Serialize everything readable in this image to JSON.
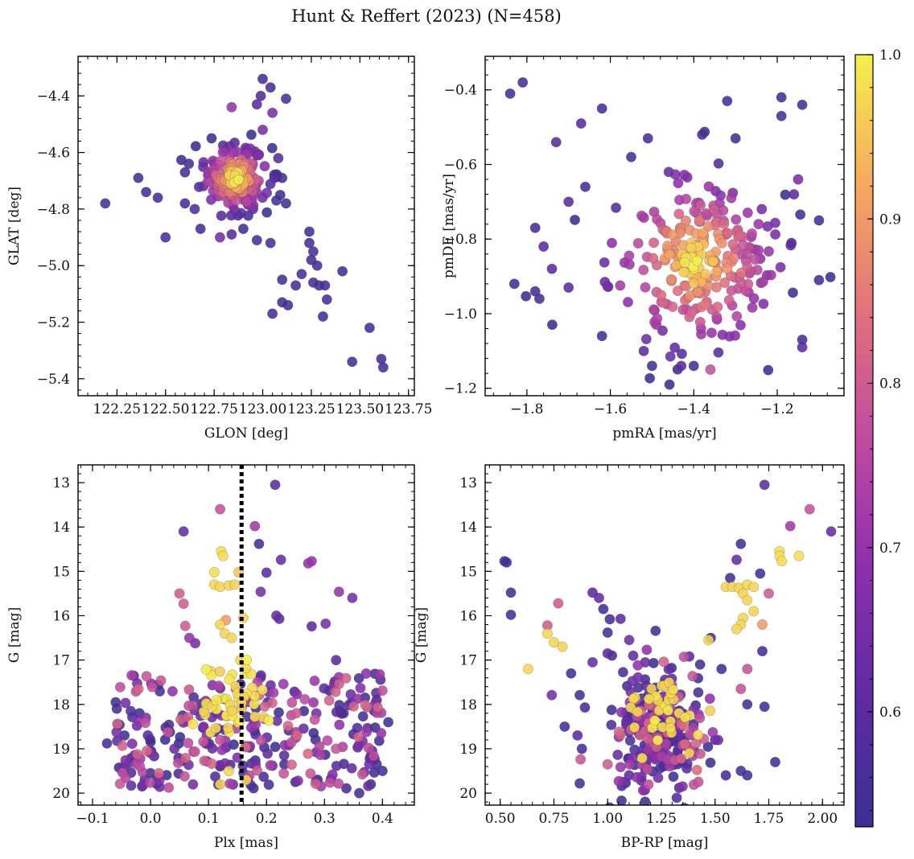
{
  "title": "Hunt & Reffert (2023) (N=458)",
  "colorbar": {
    "min": 0.53,
    "max": 1.0,
    "ticks": [
      0.6,
      0.7,
      0.8,
      0.9,
      1.0
    ],
    "tick_labels": [
      "0.6",
      "0.7",
      "0.8",
      "0.9",
      "1.0"
    ],
    "colormap": "plasma"
  },
  "chart_data": [
    {
      "id": "glon-glat",
      "type": "scatter",
      "xlabel": "GLON [deg]",
      "ylabel": "GLAT [deg]",
      "xlim": [
        122.05,
        123.78
      ],
      "ylim": [
        -5.46,
        -4.26
      ],
      "xticks": [
        122.25,
        122.5,
        122.75,
        123.0,
        123.25,
        123.5,
        123.75
      ],
      "xtick_labels": [
        "122.25",
        "122.50",
        "122.75",
        "123.00",
        "123.25",
        "123.50",
        "123.75"
      ],
      "yticks": [
        -4.4,
        -4.6,
        -4.8,
        -5.0,
        -5.2,
        -5.4
      ],
      "ytick_labels": [
        "−4.4",
        "−4.6",
        "−4.8",
        "−5.0",
        "−5.2",
        "−5.4"
      ],
      "invert_y": false,
      "cluster": {
        "cx": 122.86,
        "cy": -4.69,
        "sx": 0.08,
        "sy": 0.055,
        "n": 200
      },
      "points": [
        [
          122.19,
          -4.78,
          0.55
        ],
        [
          122.36,
          -4.69,
          0.55
        ],
        [
          122.4,
          -4.74,
          0.55
        ],
        [
          122.46,
          -4.76,
          0.55
        ],
        [
          122.5,
          -4.9,
          0.56
        ],
        [
          123.0,
          -4.34,
          0.55
        ],
        [
          123.12,
          -4.41,
          0.56
        ],
        [
          123.04,
          -4.92,
          0.56
        ],
        [
          122.97,
          -4.91,
          0.56
        ],
        [
          123.05,
          -5.17,
          0.55
        ],
        [
          123.1,
          -5.05,
          0.55
        ],
        [
          123.1,
          -5.13,
          0.55
        ],
        [
          123.13,
          -5.14,
          0.55
        ],
        [
          123.17,
          -5.07,
          0.55
        ],
        [
          123.2,
          -5.03,
          0.55
        ],
        [
          123.24,
          -4.88,
          0.55
        ],
        [
          123.24,
          -4.92,
          0.55
        ],
        [
          123.25,
          -4.98,
          0.55
        ],
        [
          123.26,
          -4.95,
          0.56
        ],
        [
          123.28,
          -5.0,
          0.55
        ],
        [
          123.26,
          -5.06,
          0.55
        ],
        [
          123.29,
          -5.07,
          0.55
        ],
        [
          123.32,
          -5.07,
          0.55
        ],
        [
          123.33,
          -5.12,
          0.55
        ],
        [
          123.31,
          -5.18,
          0.55
        ],
        [
          123.41,
          -5.02,
          0.55
        ],
        [
          123.46,
          -5.34,
          0.55
        ],
        [
          123.55,
          -5.22,
          0.55
        ],
        [
          123.61,
          -5.33,
          0.55
        ],
        [
          123.62,
          -5.36,
          0.55
        ],
        [
          122.68,
          -4.87,
          0.55
        ],
        [
          122.78,
          -4.9,
          0.65
        ],
        [
          122.84,
          -4.89,
          0.6
        ],
        [
          122.9,
          -4.87,
          0.55
        ],
        [
          122.62,
          -4.64,
          0.55
        ],
        [
          122.6,
          -4.67,
          0.55
        ],
        [
          123.08,
          -4.62,
          0.6
        ],
        [
          123.04,
          -4.37,
          0.56
        ],
        [
          122.99,
          -4.4,
          0.58
        ],
        [
          122.97,
          -4.43,
          0.6
        ],
        [
          122.84,
          -4.44,
          0.7
        ],
        [
          123.05,
          -4.46,
          0.65
        ],
        [
          123.06,
          -4.69,
          0.6
        ],
        [
          123.1,
          -4.69,
          0.55
        ],
        [
          123.07,
          -4.77,
          0.55
        ],
        [
          123.12,
          -4.78,
          0.55
        ],
        [
          122.95,
          -4.8,
          0.6
        ],
        [
          122.6,
          -4.78,
          0.55
        ],
        [
          122.65,
          -4.8,
          0.58
        ],
        [
          123.0,
          -4.52,
          0.65
        ]
      ]
    },
    {
      "id": "pmra-pmde",
      "type": "scatter",
      "xlabel": "pmRA [mas/yr]",
      "ylabel": "pmDE [mas/yr]",
      "xlim": [
        -1.9,
        -1.04
      ],
      "ylim": [
        -1.22,
        -0.31
      ],
      "xticks": [
        -1.8,
        -1.6,
        -1.4,
        -1.2
      ],
      "xtick_labels": [
        "−1.8",
        "−1.6",
        "−1.4",
        "−1.2"
      ],
      "yticks": [
        -0.4,
        -0.6,
        -0.8,
        -1.0,
        -1.2
      ],
      "ytick_labels": [
        "−0.4",
        "−0.6",
        "−0.8",
        "−1.0",
        "−1.2"
      ],
      "invert_y": false,
      "cluster": {
        "cx": -1.4,
        "cy": -0.86,
        "sx": 0.1,
        "sy": 0.11,
        "n": 260
      },
      "points": [
        [
          -1.84,
          -0.41,
          0.55
        ],
        [
          -1.81,
          -0.38,
          0.55
        ],
        [
          -1.67,
          -0.49,
          0.6
        ],
        [
          -1.62,
          -0.45,
          0.55
        ],
        [
          -1.73,
          -0.54,
          0.6
        ],
        [
          -1.32,
          -0.43,
          0.55
        ],
        [
          -1.19,
          -0.42,
          0.55
        ],
        [
          -1.14,
          -0.44,
          0.55
        ],
        [
          -1.19,
          -0.47,
          0.55
        ],
        [
          -1.3,
          -0.53,
          0.55
        ],
        [
          -1.51,
          -0.53,
          0.56
        ],
        [
          -1.55,
          -0.58,
          0.55
        ],
        [
          -1.38,
          -0.52,
          0.55
        ],
        [
          -1.83,
          -0.92,
          0.55
        ],
        [
          -1.78,
          -0.94,
          0.55
        ],
        [
          -1.77,
          -0.96,
          0.55
        ],
        [
          -1.1,
          -0.75,
          0.55
        ],
        [
          -1.1,
          -0.91,
          0.55
        ],
        [
          -1.14,
          -1.07,
          0.55
        ],
        [
          -1.14,
          -1.09,
          0.6
        ],
        [
          -1.5,
          -1.14,
          0.55
        ],
        [
          -1.4,
          -1.14,
          0.55
        ],
        [
          -1.36,
          -1.15,
          0.78
        ],
        [
          -1.43,
          -1.14,
          0.6
        ],
        [
          -1.52,
          -1.1,
          0.6
        ],
        [
          -1.62,
          -1.06,
          0.55
        ],
        [
          -1.7,
          -0.93,
          0.6
        ],
        [
          -1.74,
          -0.88,
          0.6
        ],
        [
          -1.66,
          -0.66,
          0.55
        ],
        [
          -1.7,
          -0.7,
          0.6
        ],
        [
          -1.16,
          -0.68,
          0.6
        ],
        [
          -1.15,
          -0.64,
          0.66
        ],
        [
          -1.78,
          -0.77,
          0.55
        ],
        [
          -1.76,
          -0.82,
          0.6
        ],
        [
          -1.31,
          -0.69,
          0.72
        ],
        [
          -1.46,
          -0.62,
          0.62
        ]
      ]
    },
    {
      "id": "plx-g",
      "type": "scatter",
      "xlabel": "Plx [mas]",
      "ylabel": "G [mag]",
      "xlim": [
        -0.125,
        0.455
      ],
      "ylim": [
        12.6,
        20.27
      ],
      "xticks": [
        -0.1,
        0.0,
        0.1,
        0.2,
        0.3,
        0.4
      ],
      "xtick_labels": [
        "−0.1",
        "0.0",
        "0.1",
        "0.2",
        "0.3",
        "0.4"
      ],
      "yticks": [
        13,
        14,
        15,
        16,
        17,
        18,
        19,
        20
      ],
      "ytick_labels": [
        "13",
        "14",
        "15",
        "16",
        "17",
        "18",
        "19",
        "20"
      ],
      "invert_y": true,
      "vline": 0.157,
      "points": [
        [
          0.215,
          13.05,
          0.6
        ],
        [
          0.12,
          13.6,
          0.78
        ],
        [
          0.057,
          14.1,
          0.62
        ],
        [
          0.18,
          13.98,
          0.72
        ],
        [
          0.187,
          14.38,
          0.55
        ],
        [
          0.122,
          14.55,
          0.98
        ],
        [
          0.125,
          14.65,
          0.98
        ],
        [
          0.225,
          14.74,
          0.62
        ],
        [
          0.278,
          14.77,
          0.7
        ],
        [
          0.272,
          14.82,
          0.7
        ],
        [
          0.11,
          15.02,
          0.98
        ],
        [
          0.152,
          15.02,
          0.95
        ],
        [
          0.2,
          15.03,
          0.6
        ],
        [
          0.19,
          15.46,
          0.65
        ],
        [
          0.325,
          15.46,
          0.7
        ],
        [
          0.348,
          15.6,
          0.65
        ],
        [
          0.05,
          15.5,
          0.8
        ],
        [
          0.057,
          15.73,
          0.8
        ],
        [
          0.06,
          16.23,
          0.8
        ],
        [
          0.067,
          16.5,
          0.7
        ],
        [
          0.077,
          16.62,
          0.65
        ],
        [
          0.222,
          16.07,
          0.6
        ],
        [
          0.217,
          16.0,
          0.62
        ],
        [
          0.302,
          16.18,
          0.65
        ],
        [
          0.278,
          16.24,
          0.6
        ],
        [
          0.11,
          15.3,
          0.97
        ],
        [
          0.12,
          15.35,
          0.97
        ],
        [
          0.135,
          15.32,
          0.97
        ],
        [
          0.145,
          15.3,
          0.97
        ],
        [
          0.12,
          16.2,
          0.97
        ],
        [
          0.128,
          16.4,
          0.97
        ],
        [
          0.14,
          16.5,
          0.97
        ],
        [
          0.13,
          16.1,
          0.9
        ],
        [
          0.16,
          16.05,
          0.97
        ],
        [
          0.155,
          17.0,
          0.97
        ],
        [
          -0.075,
          18.88,
          0.55
        ],
        [
          -0.06,
          17.95,
          0.55
        ],
        [
          -0.045,
          18.7,
          0.55
        ],
        [
          0.0,
          19.55,
          0.55
        ],
        [
          0.36,
          20.0,
          0.55
        ],
        [
          0.38,
          19.8,
          0.55
        ],
        [
          0.4,
          19.5,
          0.55
        ],
        [
          0.39,
          19.35,
          0.55
        ],
        [
          0.41,
          18.4,
          0.55
        ],
        [
          0.39,
          17.9,
          0.6
        ],
        [
          0.37,
          17.85,
          0.55
        ],
        [
          0.12,
          19.8,
          0.97
        ],
        [
          0.135,
          19.5,
          0.97
        ],
        [
          0.165,
          19.7,
          0.97
        ],
        [
          0.32,
          17.0,
          0.6
        ],
        [
          0.12,
          18.8,
          0.78
        ]
      ],
      "cloud": {
        "xmin": -0.06,
        "xmax": 0.4,
        "ymin": 17.3,
        "ymax": 19.9,
        "n": 290
      },
      "yellow_cluster": {
        "cx": 0.14,
        "cy": 17.9,
        "sx": 0.03,
        "sy": 0.45,
        "n": 45
      }
    },
    {
      "id": "bprp-g",
      "type": "scatter",
      "xlabel": "BP-RP [mag]",
      "ylabel": "G [mag]",
      "xlim": [
        0.43,
        2.1
      ],
      "ylim": [
        12.6,
        20.27
      ],
      "xticks": [
        0.5,
        0.75,
        1.0,
        1.25,
        1.5,
        1.75,
        2.0
      ],
      "xtick_labels": [
        "0.50",
        "0.75",
        "1.00",
        "1.25",
        "1.50",
        "1.75",
        "2.00"
      ],
      "yticks": [
        13,
        14,
        15,
        16,
        17,
        18,
        19,
        20
      ],
      "ytick_labels": [
        "13",
        "14",
        "15",
        "16",
        "17",
        "18",
        "19",
        "20"
      ],
      "invert_y": true,
      "points": [
        [
          1.73,
          13.05,
          0.6
        ],
        [
          1.94,
          13.6,
          0.78
        ],
        [
          2.04,
          14.1,
          0.62
        ],
        [
          1.85,
          13.98,
          0.72
        ],
        [
          1.62,
          14.38,
          0.55
        ],
        [
          1.8,
          14.55,
          0.98
        ],
        [
          1.8,
          14.65,
          0.98
        ],
        [
          1.89,
          14.65,
          0.98
        ],
        [
          1.81,
          14.77,
          0.98
        ],
        [
          1.6,
          14.74,
          0.62
        ],
        [
          1.71,
          15.05,
          0.55
        ],
        [
          1.57,
          15.15,
          0.55
        ],
        [
          0.52,
          14.77,
          0.55
        ],
        [
          0.53,
          14.8,
          0.55
        ],
        [
          0.55,
          15.48,
          0.55
        ],
        [
          0.55,
          15.98,
          0.55
        ],
        [
          0.63,
          17.2,
          0.97
        ],
        [
          0.72,
          16.22,
          0.8
        ],
        [
          0.72,
          16.4,
          0.97
        ],
        [
          0.75,
          16.6,
          0.97
        ],
        [
          0.79,
          16.7,
          0.97
        ],
        [
          0.77,
          15.72,
          0.8
        ],
        [
          0.74,
          17.79,
          0.65
        ],
        [
          0.8,
          18.5,
          0.55
        ],
        [
          0.86,
          18.7,
          0.6
        ],
        [
          0.88,
          19.0,
          0.55
        ],
        [
          0.87,
          19.78,
          0.55
        ],
        [
          1.0,
          19.35,
          0.8
        ],
        [
          1.1,
          19.6,
          0.6
        ],
        [
          1.48,
          16.5,
          0.55
        ],
        [
          1.47,
          16.55,
          0.97
        ],
        [
          1.55,
          15.35,
          0.97
        ],
        [
          1.58,
          15.35,
          0.97
        ],
        [
          1.61,
          15.37,
          0.97
        ],
        [
          1.65,
          15.3,
          0.97
        ],
        [
          1.68,
          15.35,
          0.97
        ],
        [
          1.63,
          15.5,
          0.97
        ],
        [
          1.65,
          15.65,
          0.97
        ],
        [
          1.68,
          15.9,
          0.97
        ],
        [
          1.63,
          16.05,
          0.97
        ],
        [
          1.62,
          16.2,
          0.97
        ],
        [
          1.6,
          16.3,
          0.97
        ],
        [
          1.72,
          16.2,
          0.9
        ],
        [
          1.75,
          15.5,
          0.8
        ],
        [
          1.72,
          16.8,
          0.55
        ],
        [
          1.65,
          17.2,
          0.78
        ],
        [
          1.62,
          17.65,
          0.78
        ],
        [
          1.65,
          18.0,
          0.55
        ],
        [
          1.73,
          18.05,
          0.55
        ],
        [
          1.78,
          19.3,
          0.55
        ],
        [
          1.62,
          19.5,
          0.55
        ],
        [
          1.65,
          19.6,
          0.55
        ],
        [
          1.55,
          19.6,
          0.55
        ],
        [
          1.5,
          18.8,
          0.6
        ],
        [
          0.93,
          15.48,
          0.6
        ],
        [
          0.96,
          15.6,
          0.62
        ],
        [
          0.98,
          15.85,
          0.55
        ],
        [
          1.01,
          16.08,
          0.55
        ],
        [
          1.06,
          16.07,
          0.6
        ],
        [
          1.0,
          16.38,
          0.55
        ],
        [
          1.0,
          16.85,
          0.6
        ],
        [
          1.02,
          16.9,
          0.55
        ],
        [
          0.93,
          17.05,
          0.62
        ],
        [
          0.83,
          17.3,
          0.55
        ],
        [
          0.87,
          17.79,
          0.55
        ],
        [
          1.38,
          16.92,
          0.6
        ],
        [
          1.43,
          17.1,
          0.55
        ],
        [
          1.53,
          17.2,
          0.55
        ]
      ],
      "cloud": {
        "cx": 1.24,
        "cy": 18.6,
        "sx": 0.11,
        "sy": 0.7,
        "n": 260
      },
      "yellow_cluster": {
        "cx": 1.27,
        "cy": 18.2,
        "sx": 0.1,
        "sy": 0.45,
        "n": 35
      }
    }
  ]
}
